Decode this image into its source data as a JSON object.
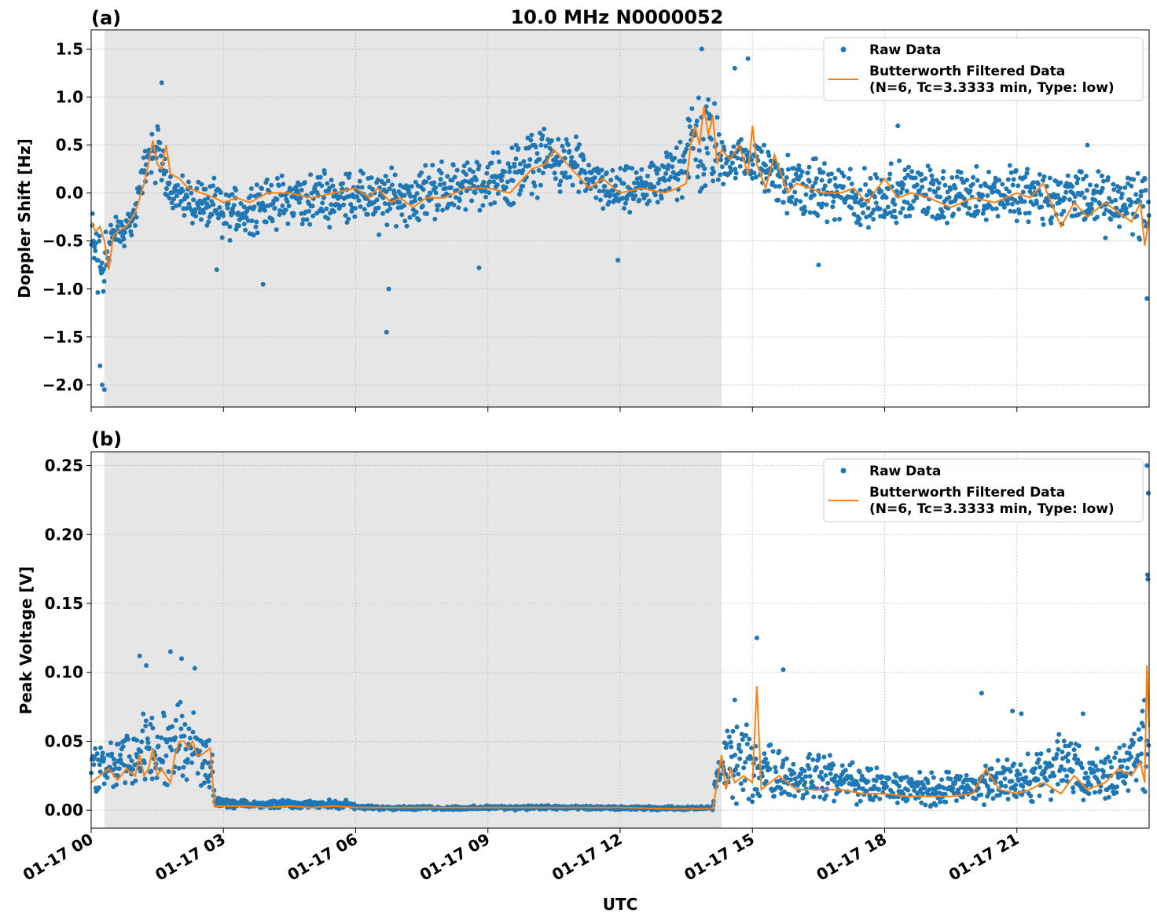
{
  "figure": {
    "title": "10.0 MHz N0000052",
    "xlabel": "UTC"
  },
  "colors": {
    "raw": "#1f77b4",
    "filtered": "#ff7f0e",
    "night_shading": "#e6e6e6",
    "grid": "#b0b0b0"
  },
  "legend": {
    "raw_label": "Raw Data",
    "filtered_label_line1": "Butterworth Filtered Data",
    "filtered_label_line2": "(N=6, Tc=3.3333 min, Type: low)",
    "placement": "top-right"
  },
  "x_axis": {
    "range_hours": [
      0,
      24
    ],
    "ticks": [
      {
        "hour": 0,
        "label": "01-17 00"
      },
      {
        "hour": 3,
        "label": "01-17 03"
      },
      {
        "hour": 6,
        "label": "01-17 06"
      },
      {
        "hour": 9,
        "label": "01-17 09"
      },
      {
        "hour": 12,
        "label": "01-17 12"
      },
      {
        "hour": 15,
        "label": "01-17 15"
      },
      {
        "hour": 18,
        "label": "01-17 18"
      },
      {
        "hour": 21,
        "label": "01-17 21"
      }
    ]
  },
  "chart_data": [
    {
      "type": "scatter",
      "panel_label": "(a)",
      "title": "10.0 MHz N0000052",
      "ylabel": "Doppler Shift [Hz]",
      "ylim": [
        -2.23,
        1.7
      ],
      "yticks": [
        {
          "value": 1.5,
          "label": "1.5"
        },
        {
          "value": 1.0,
          "label": "1.0"
        },
        {
          "value": 0.5,
          "label": "0.5"
        },
        {
          "value": 0.0,
          "label": "0.0"
        },
        {
          "value": -0.5,
          "label": "−0.5"
        },
        {
          "value": -1.0,
          "label": "−1.0"
        },
        {
          "value": -1.5,
          "label": "−1.5"
        },
        {
          "value": -2.0,
          "label": "−2.0"
        }
      ],
      "shaded_interval_hours": [
        0.3,
        14.3
      ],
      "grid": true,
      "series": [
        {
          "name": "Raw Data",
          "kind": "scatter",
          "envelope_hours": [
            0,
            0.25,
            0.5,
            0.75,
            1.0,
            1.25,
            1.5,
            1.75,
            2,
            2.5,
            3,
            3.5,
            4,
            4.5,
            5,
            5.5,
            6,
            6.5,
            7,
            7.5,
            8,
            8.5,
            9,
            9.5,
            10,
            10.5,
            11,
            11.5,
            12,
            12.5,
            13,
            13.5,
            14,
            14.25,
            14.5,
            15,
            15.5,
            16,
            16.5,
            17,
            17.5,
            18,
            18.5,
            19,
            19.5,
            20,
            20.5,
            21,
            21.5,
            22,
            22.5,
            23,
            23.5,
            23.75,
            24
          ],
          "envelope_low": [
            -1.0,
            -1.4,
            -0.7,
            -0.6,
            -0.4,
            0.1,
            0.0,
            -0.1,
            -0.3,
            -0.4,
            -0.6,
            -0.5,
            -0.4,
            -0.4,
            -0.4,
            -0.4,
            -0.3,
            -0.5,
            -0.4,
            -0.35,
            -0.3,
            -0.2,
            -0.2,
            -0.2,
            -0.1,
            0.0,
            -0.05,
            -0.2,
            -0.3,
            -0.2,
            -0.15,
            -0.1,
            -0.2,
            0.0,
            0.1,
            0.1,
            -0.2,
            -0.3,
            -0.3,
            -0.4,
            -0.5,
            -0.4,
            -0.3,
            -0.3,
            -0.4,
            -0.4,
            -0.3,
            -0.35,
            -0.4,
            -0.4,
            -0.4,
            -0.5,
            -0.5,
            -0.6,
            -0.6
          ],
          "envelope_high": [
            0.0,
            0.0,
            -0.2,
            -0.2,
            0.0,
            0.6,
            0.9,
            0.3,
            0.2,
            0.2,
            0.15,
            0.15,
            0.2,
            0.25,
            0.3,
            0.3,
            0.3,
            0.3,
            0.3,
            0.35,
            0.4,
            0.35,
            0.45,
            0.55,
            0.7,
            0.75,
            0.6,
            0.35,
            0.3,
            0.3,
            0.4,
            1.0,
            1.3,
            0.8,
            0.6,
            0.6,
            0.5,
            0.4,
            0.4,
            0.35,
            0.3,
            0.4,
            0.35,
            0.35,
            0.3,
            0.35,
            0.3,
            0.35,
            0.35,
            0.3,
            0.3,
            0.25,
            0.3,
            0.4,
            0.5
          ],
          "outliers": [
            [
              0.2,
              -1.8
            ],
            [
              0.25,
              -2.0
            ],
            [
              0.3,
              -2.05
            ],
            [
              1.6,
              1.15
            ],
            [
              2.85,
              -0.8
            ],
            [
              3.9,
              -0.95
            ],
            [
              6.7,
              -1.45
            ],
            [
              6.75,
              -1.0
            ],
            [
              8.8,
              -0.78
            ],
            [
              11.95,
              -0.7
            ],
            [
              13.85,
              1.5
            ],
            [
              14.6,
              1.3
            ],
            [
              14.9,
              1.4
            ],
            [
              16.5,
              -0.75
            ],
            [
              18.3,
              0.7
            ],
            [
              22.6,
              0.5
            ],
            [
              23.95,
              -1.1
            ]
          ]
        },
        {
          "name": "Butterworth Filtered Data",
          "kind": "line",
          "x_hours": [
            0,
            0.1,
            0.2,
            0.3,
            0.4,
            0.5,
            0.6,
            0.8,
            1.0,
            1.2,
            1.3,
            1.4,
            1.5,
            1.6,
            1.7,
            1.8,
            2.0,
            2.2,
            2.5,
            2.8,
            3.0,
            3.3,
            3.6,
            4.0,
            4.5,
            5.0,
            5.5,
            6.0,
            6.3,
            6.5,
            6.8,
            7.0,
            7.3,
            7.6,
            8.0,
            8.5,
            9.0,
            9.5,
            9.8,
            10.0,
            10.3,
            10.5,
            10.8,
            11.0,
            11.3,
            11.6,
            12.0,
            12.5,
            13.0,
            13.3,
            13.5,
            13.6,
            13.7,
            13.8,
            13.9,
            14.0,
            14.1,
            14.2,
            14.3,
            14.5,
            14.7,
            14.9,
            15.0,
            15.1,
            15.3,
            15.5,
            15.8,
            16.0,
            16.3,
            16.6,
            17.0,
            17.3,
            17.6,
            18.0,
            18.3,
            18.6,
            19.0,
            19.5,
            20.0,
            20.5,
            21.0,
            21.3,
            21.6,
            22.0,
            22.3,
            22.6,
            23.0,
            23.3,
            23.6,
            23.8,
            23.9,
            24.0
          ],
          "y": [
            -0.3,
            -0.4,
            -0.35,
            -0.5,
            -0.8,
            -0.45,
            -0.4,
            -0.35,
            -0.2,
            0.1,
            0.3,
            0.55,
            0.3,
            0.25,
            0.5,
            0.2,
            0.15,
            0.05,
            0.0,
            -0.05,
            -0.1,
            -0.05,
            -0.1,
            0.0,
            0.0,
            -0.05,
            0.0,
            0.05,
            -0.05,
            0.05,
            -0.1,
            -0.05,
            -0.15,
            -0.05,
            -0.05,
            0.05,
            0.05,
            0.0,
            0.15,
            0.25,
            0.3,
            0.45,
            0.3,
            0.2,
            0.05,
            0.15,
            0.0,
            0.05,
            0.0,
            0.05,
            0.1,
            0.5,
            0.7,
            0.5,
            0.9,
            0.6,
            0.8,
            0.3,
            0.45,
            0.35,
            0.5,
            0.2,
            0.7,
            0.3,
            0.05,
            0.4,
            0.0,
            0.1,
            0.05,
            0.0,
            0.0,
            0.05,
            -0.1,
            0.15,
            -0.05,
            0.0,
            -0.05,
            -0.15,
            -0.05,
            -0.1,
            0.0,
            -0.05,
            0.1,
            -0.35,
            -0.1,
            -0.25,
            -0.1,
            -0.2,
            -0.3,
            -0.1,
            -0.55,
            -0.25
          ]
        }
      ]
    },
    {
      "type": "scatter",
      "panel_label": "(b)",
      "ylabel": "Peak Voltage [V]",
      "ylim": [
        -0.013,
        0.26
      ],
      "yticks": [
        {
          "value": 0.25,
          "label": "0.25"
        },
        {
          "value": 0.2,
          "label": "0.20"
        },
        {
          "value": 0.15,
          "label": "0.15"
        },
        {
          "value": 0.1,
          "label": "0.10"
        },
        {
          "value": 0.05,
          "label": "0.05"
        },
        {
          "value": 0.0,
          "label": "0.00"
        }
      ],
      "shaded_interval_hours": [
        0.3,
        14.3
      ],
      "grid": true,
      "series": [
        {
          "name": "Raw Data",
          "kind": "scatter",
          "envelope_hours": [
            0,
            0.25,
            0.5,
            0.75,
            1.0,
            1.25,
            1.5,
            1.75,
            2.0,
            2.25,
            2.5,
            2.75,
            2.8,
            3.0,
            4.0,
            4.5,
            5.0,
            5.5,
            5.8,
            6.0,
            8,
            10,
            12,
            14.0,
            14.1,
            14.2,
            14.5,
            14.75,
            15.0,
            15.25,
            15.5,
            16.0,
            16.5,
            17,
            17.5,
            18,
            18.5,
            19,
            19.5,
            20,
            20.5,
            21,
            21.5,
            22,
            22.5,
            23,
            23.5,
            23.8,
            23.9,
            24.0
          ],
          "envelope_low": [
            0.01,
            0.008,
            0.008,
            0.01,
            0.01,
            0.01,
            0.01,
            0.012,
            0.015,
            0.01,
            0.01,
            0.012,
            0.001,
            0.001,
            0.001,
            0.001,
            0.001,
            0.001,
            0.001,
            0.0,
            0.0,
            0.0,
            0.0,
            0.0,
            0.0,
            0.005,
            0.003,
            0.003,
            0.002,
            0.003,
            0.003,
            0.002,
            0.003,
            0.002,
            0.002,
            0.002,
            0.002,
            0.001,
            0.001,
            0.002,
            0.002,
            0.002,
            0.002,
            0.003,
            0.002,
            0.003,
            0.003,
            0.004,
            0.005,
            0.01
          ],
          "envelope_high": [
            0.05,
            0.055,
            0.06,
            0.06,
            0.065,
            0.09,
            0.06,
            0.085,
            0.09,
            0.08,
            0.07,
            0.06,
            0.01,
            0.008,
            0.007,
            0.009,
            0.007,
            0.008,
            0.008,
            0.004,
            0.003,
            0.004,
            0.003,
            0.003,
            0.004,
            0.05,
            0.07,
            0.065,
            0.06,
            0.06,
            0.05,
            0.045,
            0.045,
            0.04,
            0.035,
            0.03,
            0.03,
            0.03,
            0.03,
            0.03,
            0.04,
            0.04,
            0.05,
            0.06,
            0.05,
            0.05,
            0.06,
            0.07,
            0.12,
            0.24
          ],
          "outliers": [
            [
              1.1,
              0.112
            ],
            [
              1.25,
              0.105
            ],
            [
              1.8,
              0.115
            ],
            [
              2.05,
              0.11
            ],
            [
              2.35,
              0.103
            ],
            [
              14.6,
              0.08
            ],
            [
              15.1,
              0.125
            ],
            [
              15.7,
              0.102
            ],
            [
              20.2,
              0.085
            ],
            [
              20.9,
              0.072
            ],
            [
              21.1,
              0.07
            ],
            [
              22.5,
              0.07
            ],
            [
              23.95,
              0.25
            ],
            [
              23.98,
              0.23
            ]
          ]
        },
        {
          "name": "Butterworth Filtered Data",
          "kind": "line",
          "x_hours": [
            0,
            0.2,
            0.4,
            0.6,
            0.8,
            1.0,
            1.1,
            1.2,
            1.3,
            1.4,
            1.5,
            1.6,
            1.8,
            1.9,
            2.0,
            2.1,
            2.2,
            2.3,
            2.4,
            2.5,
            2.7,
            2.8,
            3.0,
            3.5,
            4.0,
            4.5,
            5.0,
            5.5,
            6.0,
            7,
            8,
            9,
            10,
            11,
            12,
            13,
            14.0,
            14.1,
            14.2,
            14.3,
            14.4,
            14.5,
            14.6,
            14.8,
            15.0,
            15.1,
            15.2,
            15.4,
            15.6,
            15.8,
            16.0,
            16.5,
            17,
            17.5,
            18,
            18.5,
            19,
            19.5,
            20,
            20.3,
            20.6,
            21,
            21.3,
            21.6,
            22,
            22.3,
            22.6,
            23,
            23.3,
            23.6,
            23.8,
            23.9,
            23.95,
            24.0
          ],
          "y": [
            0.02,
            0.025,
            0.03,
            0.022,
            0.03,
            0.025,
            0.04,
            0.025,
            0.03,
            0.045,
            0.025,
            0.03,
            0.02,
            0.04,
            0.05,
            0.05,
            0.045,
            0.05,
            0.04,
            0.04,
            0.045,
            0.003,
            0.003,
            0.003,
            0.002,
            0.003,
            0.002,
            0.003,
            0.002,
            0.002,
            0.002,
            0.002,
            0.002,
            0.002,
            0.002,
            0.001,
            0.001,
            0.001,
            0.02,
            0.04,
            0.015,
            0.03,
            0.02,
            0.025,
            0.02,
            0.09,
            0.015,
            0.02,
            0.025,
            0.02,
            0.015,
            0.015,
            0.015,
            0.012,
            0.012,
            0.01,
            0.01,
            0.01,
            0.012,
            0.03,
            0.015,
            0.012,
            0.015,
            0.02,
            0.012,
            0.025,
            0.015,
            0.02,
            0.03,
            0.025,
            0.035,
            0.02,
            0.105,
            0.06
          ]
        }
      ]
    }
  ]
}
